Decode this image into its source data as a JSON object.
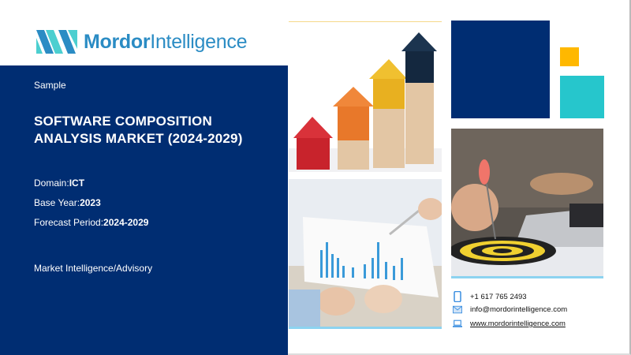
{
  "brand": {
    "name_bold": "Mordor",
    "name_regular": "Intelligence"
  },
  "panel": {
    "label": "Sample",
    "title_line1": "SOFTWARE COMPOSITION",
    "title_line2": "ANALYSIS MARKET (2024-2029)",
    "domain_label": "Domain:",
    "domain_value": "ICT",
    "base_year_label": "Base Year:",
    "base_year_value": "2023",
    "forecast_label": "Forecast Period:",
    "forecast_value": "2024-2029",
    "category": "Market Intelligence/Advisory"
  },
  "contact": {
    "phone": "+1 617 765 2493",
    "email": "info@mordorintelligence.com",
    "website": "www.mordorintelligence.com"
  },
  "colors": {
    "navy": "#002d72",
    "teal": "#26c6cc",
    "yellow": "#ffb800",
    "logo": "#2b8cc4"
  }
}
